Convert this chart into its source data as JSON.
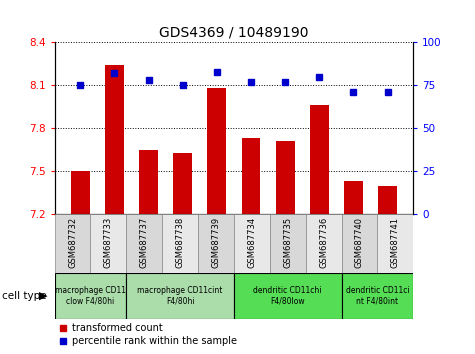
{
  "title": "GDS4369 / 10489190",
  "samples": [
    "GSM687732",
    "GSM687733",
    "GSM687737",
    "GSM687738",
    "GSM687739",
    "GSM687734",
    "GSM687735",
    "GSM687736",
    "GSM687740",
    "GSM687741"
  ],
  "bar_values": [
    7.5,
    8.245,
    7.65,
    7.63,
    8.08,
    7.73,
    7.71,
    7.965,
    7.435,
    7.4
  ],
  "dot_values": [
    75,
    82,
    78,
    75,
    83,
    77,
    77,
    80,
    71,
    71
  ],
  "ylim_left": [
    7.2,
    8.4
  ],
  "ylim_right": [
    0,
    100
  ],
  "yticks_left": [
    7.2,
    7.5,
    7.8,
    8.1,
    8.4
  ],
  "yticks_right": [
    0,
    25,
    50,
    75,
    100
  ],
  "bar_color": "#cc0000",
  "dot_color": "#0000cc",
  "cell_type_groups": [
    {
      "label": "macrophage CD11\nclow F4/80hi",
      "start": 0,
      "end": 2,
      "color": "#aaddaa"
    },
    {
      "label": "macrophage CD11cint\nF4/80hi",
      "start": 2,
      "end": 5,
      "color": "#aaddaa"
    },
    {
      "label": "dendritic CD11chi\nF4/80low",
      "start": 5,
      "end": 8,
      "color": "#55dd55"
    },
    {
      "label": "dendritic CD11ci\nnt F4/80int",
      "start": 8,
      "end": 10,
      "color": "#55dd55"
    }
  ],
  "legend_bar_label": "transformed count",
  "legend_dot_label": "percentile rank within the sample",
  "cell_type_label": "cell type",
  "figsize": [
    4.75,
    3.54
  ],
  "dpi": 100
}
